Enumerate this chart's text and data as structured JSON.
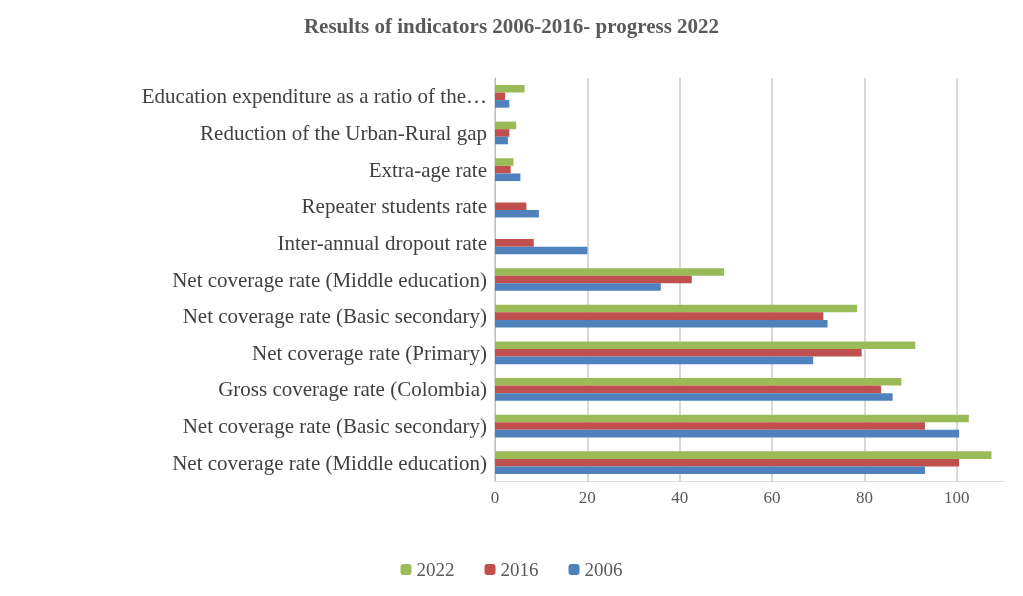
{
  "chart_data": {
    "type": "bar",
    "orientation": "horizontal",
    "title": "Results of indicators 2006-2016- progress 2022",
    "categories": [
      "Education expenditure as a ratio of the…",
      "Reduction of the Urban-Rural gap",
      "Extra-age rate",
      "Repeater students rate",
      "Inter-annual dropout rate",
      "Net coverage rate (Middle education)",
      "Net coverage rate (Basic secondary)",
      "Net coverage rate (Primary)",
      "Gross coverage rate (Colombia)",
      "Net coverage rate (Basic secondary)",
      "Net coverage rate (Middle education)"
    ],
    "series": [
      {
        "name": "2022",
        "color": "#9bbb59",
        "values": [
          6.4,
          4.6,
          4.0,
          null,
          null,
          49.6,
          78.4,
          91.0,
          88.0,
          102.6,
          107.5
        ]
      },
      {
        "name": "2016",
        "color": "#c0504d",
        "values": [
          2.2,
          3.1,
          3.4,
          6.8,
          8.4,
          42.6,
          71.1,
          79.4,
          83.6,
          93.1,
          100.5
        ]
      },
      {
        "name": "2006",
        "color": "#4f81bd",
        "values": [
          3.1,
          2.8,
          5.5,
          9.5,
          20.0,
          35.9,
          72.0,
          68.9,
          86.1,
          100.5,
          93.1
        ]
      }
    ],
    "xlim": [
      0,
      110
    ],
    "xticks": [
      0,
      20,
      40,
      60,
      80,
      100
    ],
    "grid": "x",
    "legend": "bottom"
  }
}
